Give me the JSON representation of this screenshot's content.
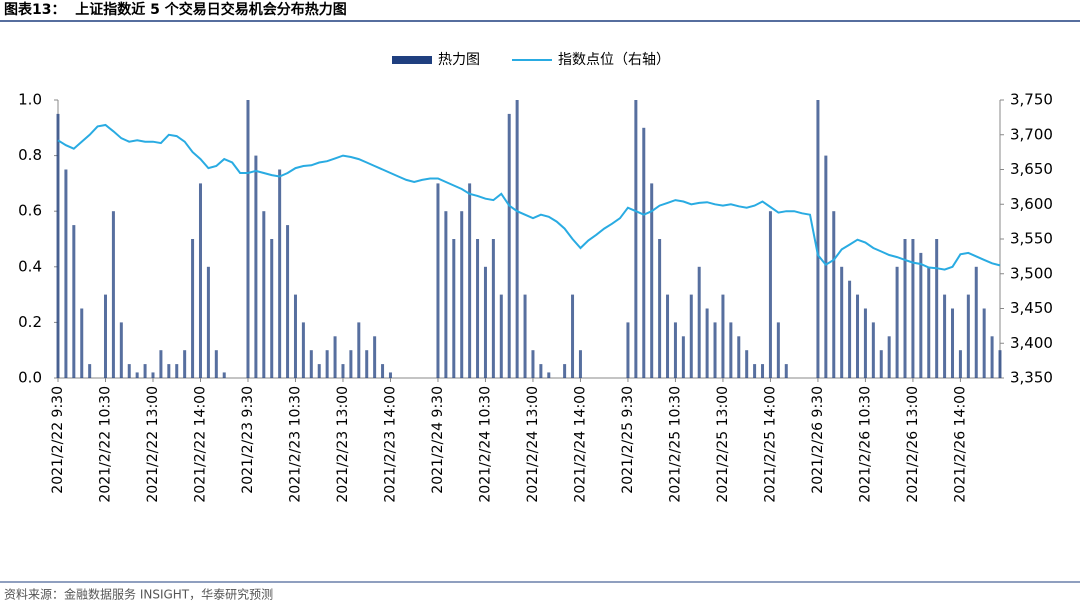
{
  "chart_data": {
    "type": "bar_line",
    "title": "图表13：  上证指数近 5 个交易日交易机会分布热力图",
    "source": "资料来源：金融数据服务 INSIGHT，华泰研究预测",
    "categories": [
      "2021/2/22 9:30",
      null,
      null,
      null,
      null,
      null,
      "2021/2/22 10:30",
      null,
      null,
      null,
      null,
      null,
      "2021/2/22 13:00",
      null,
      null,
      null,
      null,
      null,
      "2021/2/22 14:00",
      null,
      null,
      null,
      null,
      null,
      "2021/2/23 9:30",
      null,
      null,
      null,
      null,
      null,
      "2021/2/23 10:30",
      null,
      null,
      null,
      null,
      null,
      "2021/2/23 13:00",
      null,
      null,
      null,
      null,
      null,
      "2021/2/23 14:00",
      null,
      null,
      null,
      null,
      null,
      "2021/2/24 9:30",
      null,
      null,
      null,
      null,
      null,
      "2021/2/24 10:30",
      null,
      null,
      null,
      null,
      null,
      "2021/2/24 13:00",
      null,
      null,
      null,
      null,
      null,
      "2021/2/24 14:00",
      null,
      null,
      null,
      null,
      null,
      "2021/2/25 9:30",
      null,
      null,
      null,
      null,
      null,
      "2021/2/25 10:30",
      null,
      null,
      null,
      null,
      null,
      "2021/2/25 13:00",
      null,
      null,
      null,
      null,
      null,
      "2021/2/25 14:00",
      null,
      null,
      null,
      null,
      null,
      "2021/2/26 9:30",
      null,
      null,
      null,
      null,
      null,
      "2021/2/26 10:30",
      null,
      null,
      null,
      null,
      null,
      "2021/2/26 13:00",
      null,
      null,
      null,
      null,
      null,
      "2021/2/26 14:00",
      null,
      null,
      null,
      null,
      null
    ],
    "series": [
      {
        "name": "热力图",
        "color": "#1f3f7f",
        "values": [
          0.95,
          0.75,
          0.55,
          0.25,
          0.05,
          0.0,
          0.3,
          0.6,
          0.2,
          0.05,
          0.02,
          0.05,
          0.02,
          0.1,
          0.05,
          0.05,
          0.1,
          0.5,
          0.7,
          0.4,
          0.1,
          0.02,
          0.0,
          0.0,
          1.0,
          0.8,
          0.6,
          0.5,
          0.75,
          0.55,
          0.3,
          0.2,
          0.1,
          0.05,
          0.1,
          0.15,
          0.05,
          0.1,
          0.2,
          0.1,
          0.15,
          0.05,
          0.02,
          0.0,
          0.0,
          0.0,
          0.0,
          0.0,
          0.7,
          0.6,
          0.5,
          0.6,
          0.7,
          0.5,
          0.4,
          0.5,
          0.3,
          0.95,
          1.0,
          0.3,
          0.1,
          0.05,
          0.02,
          0.0,
          0.05,
          0.3,
          0.1,
          0.0,
          0.0,
          0.0,
          0.0,
          0.0,
          0.2,
          1.0,
          0.9,
          0.7,
          0.5,
          0.3,
          0.2,
          0.15,
          0.3,
          0.4,
          0.25,
          0.2,
          0.3,
          0.2,
          0.15,
          0.1,
          0.05,
          0.05,
          0.6,
          0.2,
          0.05,
          0.0,
          0.0,
          0.0,
          1.0,
          0.8,
          0.6,
          0.4,
          0.35,
          0.3,
          0.25,
          0.2,
          0.1,
          0.15,
          0.4,
          0.5,
          0.5,
          0.45,
          0.4,
          0.5,
          0.3,
          0.25,
          0.1,
          0.3,
          0.4,
          0.25,
          0.15,
          0.1
        ]
      },
      {
        "name": "指数点位（右轴）",
        "color": "#29abe2",
        "axis": "y2",
        "values": [
          3692,
          3685,
          3680,
          3690,
          3700,
          3712,
          3714,
          3705,
          3695,
          3690,
          3692,
          3690,
          3690,
          3688,
          3700,
          3698,
          3690,
          3675,
          3665,
          3652,
          3655,
          3665,
          3660,
          3645,
          3645,
          3648,
          3645,
          3642,
          3640,
          3645,
          3652,
          3655,
          3656,
          3660,
          3662,
          3666,
          3670,
          3668,
          3665,
          3660,
          3655,
          3650,
          3645,
          3640,
          3635,
          3632,
          3635,
          3637,
          3637,
          3632,
          3627,
          3622,
          3615,
          3612,
          3608,
          3606,
          3615,
          3598,
          3590,
          3585,
          3580,
          3585,
          3582,
          3575,
          3565,
          3550,
          3537,
          3548,
          3556,
          3565,
          3572,
          3580,
          3595,
          3590,
          3585,
          3590,
          3598,
          3602,
          3606,
          3604,
          3600,
          3602,
          3603,
          3600,
          3598,
          3600,
          3597,
          3595,
          3598,
          3604,
          3596,
          3588,
          3590,
          3590,
          3587,
          3585,
          3527,
          3513,
          3520,
          3535,
          3542,
          3549,
          3545,
          3537,
          3532,
          3527,
          3524,
          3520,
          3516,
          3514,
          3509,
          3508,
          3506,
          3510,
          3528,
          3530,
          3525,
          3520,
          3515,
          3512
        ]
      }
    ],
    "ylim": [
      0,
      1
    ],
    "yticks": [
      {
        "value": 0,
        "label": "0.0"
      },
      0.2,
      0.4,
      0.6,
      0.8,
      {
        "value": 1,
        "label": "1.0"
      }
    ],
    "y2lim": [
      3350,
      3750
    ],
    "y2ticks": [
      {
        "value": 3350,
        "label": "3,350"
      },
      {
        "value": 3400,
        "label": "3,400"
      },
      {
        "value": 3450,
        "label": "3,450"
      },
      {
        "value": 3500,
        "label": "3,500"
      },
      {
        "value": 3550,
        "label": "3,550"
      },
      {
        "value": 3600,
        "label": "3,600"
      },
      {
        "value": 3650,
        "label": "3,650"
      },
      {
        "value": 3700,
        "label": "3,700"
      },
      {
        "value": 3750,
        "label": "3,750"
      }
    ],
    "legend": "top"
  }
}
